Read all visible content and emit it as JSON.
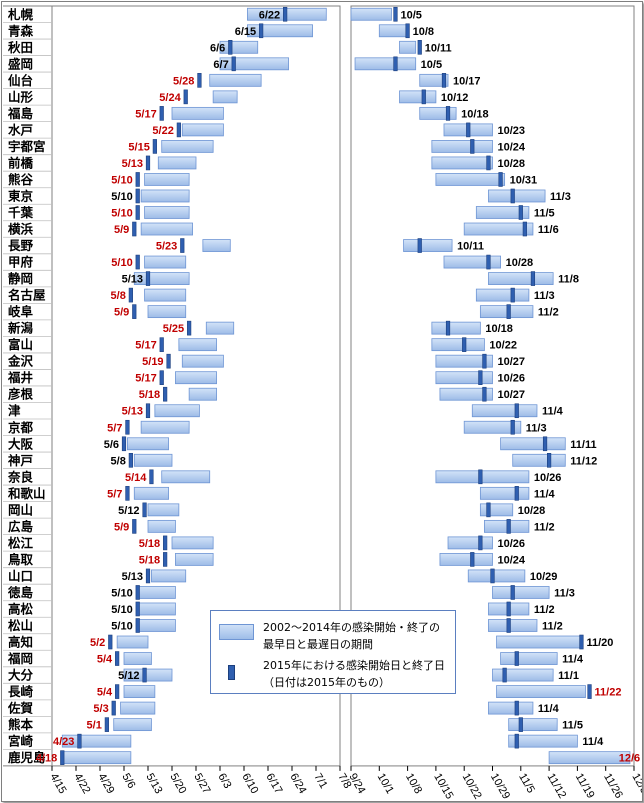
{
  "chart_data": {
    "type": "range-bar",
    "legend": {
      "range_label_line1": "2002～2014年の感染開始・終了の",
      "range_label_line2": "最早日と最遅日の期間",
      "mark_label_line1": "2015年における感染開始日と終了日",
      "mark_label_line2": "（日付は2015年のもの）"
    },
    "colors": {
      "bar": "#a9c4ec",
      "bar_edge": "#6e95d4",
      "mark": "#2f5fb0",
      "red_label": "#c00000",
      "black_label": "#000000"
    },
    "left_axis_ticks": [
      "4/15",
      "4/22",
      "4/29",
      "5/6",
      "5/13",
      "5/20",
      "5/27",
      "6/3",
      "6/10",
      "6/17",
      "6/24",
      "7/1",
      "7/8"
    ],
    "right_axis_ticks": [
      "9/24",
      "10/1",
      "10/8",
      "10/15",
      "10/22",
      "10/29",
      "11/5",
      "11/12",
      "11/19",
      "11/26",
      "12/3"
    ],
    "cities": [
      {
        "name": "札幌",
        "start_range": [
          "6/11",
          "7/4"
        ],
        "start_2015": "6/22",
        "start_red": false,
        "end_range": [
          "9/24",
          "10/4"
        ],
        "end_2015": "10/5",
        "end_red": false
      },
      {
        "name": "青森",
        "start_range": [
          "6/11",
          "6/30"
        ],
        "start_2015": "6/15",
        "start_red": false,
        "end_range": [
          "10/1",
          "10/8"
        ],
        "end_2015": "10/8",
        "end_red": false
      },
      {
        "name": "秋田",
        "start_range": [
          "6/3",
          "6/14"
        ],
        "start_2015": "6/6",
        "start_red": false,
        "end_range": [
          "10/6",
          "10/10"
        ],
        "end_2015": "10/11",
        "end_red": false
      },
      {
        "name": "盛岡",
        "start_range": [
          "6/3",
          "6/23"
        ],
        "start_2015": "6/7",
        "start_red": false,
        "end_range": [
          "9/25",
          "10/10"
        ],
        "end_2015": "10/5",
        "end_red": false
      },
      {
        "name": "仙台",
        "start_range": [
          "5/31",
          "6/15"
        ],
        "start_2015": "5/28",
        "start_red": true,
        "end_range": [
          "10/11",
          "10/18"
        ],
        "end_2015": "10/17",
        "end_red": false
      },
      {
        "name": "山形",
        "start_range": [
          "6/1",
          "6/8"
        ],
        "start_2015": "5/24",
        "start_red": true,
        "end_range": [
          "10/6",
          "10/15"
        ],
        "end_2015": "10/12",
        "end_red": false
      },
      {
        "name": "福島",
        "start_range": [
          "5/20",
          "6/4"
        ],
        "start_2015": "5/17",
        "start_red": true,
        "end_range": [
          "10/11",
          "10/20"
        ],
        "end_2015": "10/18",
        "end_red": false
      },
      {
        "name": "水戸",
        "start_range": [
          "5/23",
          "6/4"
        ],
        "start_2015": "5/22",
        "start_red": true,
        "end_range": [
          "10/17",
          "10/29"
        ],
        "end_2015": "10/23",
        "end_red": false
      },
      {
        "name": "宇都宮",
        "start_range": [
          "5/17",
          "6/1"
        ],
        "start_2015": "5/15",
        "start_red": true,
        "end_range": [
          "10/14",
          "10/29"
        ],
        "end_2015": "10/24",
        "end_red": false
      },
      {
        "name": "前橋",
        "start_range": [
          "5/16",
          "5/27"
        ],
        "start_2015": "5/13",
        "start_red": true,
        "end_range": [
          "10/14",
          "10/29"
        ],
        "end_2015": "10/28",
        "end_red": false
      },
      {
        "name": "熊谷",
        "start_range": [
          "5/12",
          "5/25"
        ],
        "start_2015": "5/10",
        "start_red": true,
        "end_range": [
          "10/15",
          "11/1"
        ],
        "end_2015": "10/31",
        "end_red": false
      },
      {
        "name": "東京",
        "start_range": [
          "5/11",
          "5/25"
        ],
        "start_2015": "5/10",
        "start_red": false,
        "end_range": [
          "10/28",
          "11/11"
        ],
        "end_2015": "11/3",
        "end_red": false
      },
      {
        "name": "千葉",
        "start_range": [
          "5/12",
          "5/25"
        ],
        "start_2015": "5/10",
        "start_red": true,
        "end_range": [
          "10/25",
          "11/7"
        ],
        "end_2015": "11/5",
        "end_red": false
      },
      {
        "name": "横浜",
        "start_range": [
          "5/11",
          "5/26"
        ],
        "start_2015": "5/9",
        "start_red": true,
        "end_range": [
          "10/22",
          "11/8"
        ],
        "end_2015": "11/6",
        "end_red": false
      },
      {
        "name": "長野",
        "start_range": [
          "5/29",
          "6/6"
        ],
        "start_2015": "5/23",
        "start_red": true,
        "end_range": [
          "10/7",
          "10/19"
        ],
        "end_2015": "10/11",
        "end_red": false
      },
      {
        "name": "甲府",
        "start_range": [
          "5/12",
          "5/24"
        ],
        "start_2015": "5/10",
        "start_red": true,
        "end_range": [
          "10/17",
          "10/31"
        ],
        "end_2015": "10/28",
        "end_red": false
      },
      {
        "name": "静岡",
        "start_range": [
          "5/9",
          "5/25"
        ],
        "start_2015": "5/13",
        "start_red": false,
        "end_range": [
          "10/28",
          "11/13"
        ],
        "end_2015": "11/8",
        "end_red": false
      },
      {
        "name": "名古屋",
        "start_range": [
          "5/12",
          "5/24"
        ],
        "start_2015": "5/8",
        "start_red": true,
        "end_range": [
          "10/25",
          "11/7"
        ],
        "end_2015": "11/3",
        "end_red": false
      },
      {
        "name": "岐阜",
        "start_range": [
          "5/13",
          "5/24"
        ],
        "start_2015": "5/9",
        "start_red": true,
        "end_range": [
          "10/26",
          "11/8"
        ],
        "end_2015": "11/2",
        "end_red": false
      },
      {
        "name": "新潟",
        "start_range": [
          "5/30",
          "6/7"
        ],
        "start_2015": "5/25",
        "start_red": true,
        "end_range": [
          "10/14",
          "10/26"
        ],
        "end_2015": "10/18",
        "end_red": false
      },
      {
        "name": "富山",
        "start_range": [
          "5/22",
          "6/2"
        ],
        "start_2015": "5/17",
        "start_red": true,
        "end_range": [
          "10/14",
          "10/27"
        ],
        "end_2015": "10/22",
        "end_red": false
      },
      {
        "name": "金沢",
        "start_range": [
          "5/23",
          "6/4"
        ],
        "start_2015": "5/19",
        "start_red": true,
        "end_range": [
          "10/15",
          "10/29"
        ],
        "end_2015": "10/27",
        "end_red": false
      },
      {
        "name": "福井",
        "start_range": [
          "5/21",
          "6/2"
        ],
        "start_2015": "5/17",
        "start_red": true,
        "end_range": [
          "10/15",
          "10/29"
        ],
        "end_2015": "10/26",
        "end_red": false
      },
      {
        "name": "彦根",
        "start_range": [
          "5/25",
          "6/2"
        ],
        "start_2015": "5/18",
        "start_red": true,
        "end_range": [
          "10/16",
          "10/29"
        ],
        "end_2015": "10/27",
        "end_red": false
      },
      {
        "name": "津",
        "start_range": [
          "5/15",
          "5/28"
        ],
        "start_2015": "5/13",
        "start_red": true,
        "end_range": [
          "10/24",
          "11/9"
        ],
        "end_2015": "11/4",
        "end_red": false
      },
      {
        "name": "京都",
        "start_range": [
          "5/11",
          "5/25"
        ],
        "start_2015": "5/7",
        "start_red": true,
        "end_range": [
          "10/22",
          "11/5"
        ],
        "end_2015": "11/3",
        "end_red": false
      },
      {
        "name": "大阪",
        "start_range": [
          "5/7",
          "5/19"
        ],
        "start_2015": "5/6",
        "start_red": false,
        "end_range": [
          "10/31",
          "11/16"
        ],
        "end_2015": "11/11",
        "end_red": false
      },
      {
        "name": "神戸",
        "start_range": [
          "5/9",
          "5/20"
        ],
        "start_2015": "5/8",
        "start_red": false,
        "end_range": [
          "11/3",
          "11/16"
        ],
        "end_2015": "11/12",
        "end_red": false
      },
      {
        "name": "奈良",
        "start_range": [
          "5/17",
          "5/31"
        ],
        "start_2015": "5/14",
        "start_red": true,
        "end_range": [
          "10/15",
          "11/7"
        ],
        "end_2015": "10/26",
        "end_red": false
      },
      {
        "name": "和歌山",
        "start_range": [
          "5/9",
          "5/19"
        ],
        "start_2015": "5/7",
        "start_red": true,
        "end_range": [
          "10/26",
          "11/7"
        ],
        "end_2015": "11/4",
        "end_red": false
      },
      {
        "name": "岡山",
        "start_range": [
          "5/13",
          "5/22"
        ],
        "start_2015": "5/12",
        "start_red": false,
        "end_range": [
          "10/26",
          "11/3"
        ],
        "end_2015": "10/28",
        "end_red": false
      },
      {
        "name": "広島",
        "start_range": [
          "5/13",
          "5/21"
        ],
        "start_2015": "5/9",
        "start_red": true,
        "end_range": [
          "10/27",
          "11/7"
        ],
        "end_2015": "11/2",
        "end_red": false
      },
      {
        "name": "松江",
        "start_range": [
          "5/20",
          "6/1"
        ],
        "start_2015": "5/18",
        "start_red": true,
        "end_range": [
          "10/18",
          "10/29"
        ],
        "end_2015": "10/26",
        "end_red": false
      },
      {
        "name": "鳥取",
        "start_range": [
          "5/21",
          "6/1"
        ],
        "start_2015": "5/18",
        "start_red": true,
        "end_range": [
          "10/16",
          "10/29"
        ],
        "end_2015": "10/24",
        "end_red": false
      },
      {
        "name": "山口",
        "start_range": [
          "5/14",
          "5/24"
        ],
        "start_2015": "5/13",
        "start_red": false,
        "end_range": [
          "10/23",
          "11/6"
        ],
        "end_2015": "10/29",
        "end_red": false
      },
      {
        "name": "徳島",
        "start_range": [
          "5/10",
          "5/21"
        ],
        "start_2015": "5/10",
        "start_red": false,
        "end_range": [
          "10/29",
          "11/12"
        ],
        "end_2015": "11/3",
        "end_red": false
      },
      {
        "name": "高松",
        "start_range": [
          "5/10",
          "5/21"
        ],
        "start_2015": "5/10",
        "start_red": false,
        "end_range": [
          "10/28",
          "11/7"
        ],
        "end_2015": "11/2",
        "end_red": false
      },
      {
        "name": "松山",
        "start_range": [
          "5/10",
          "5/21"
        ],
        "start_2015": "5/10",
        "start_red": false,
        "end_range": [
          "10/28",
          "11/9"
        ],
        "end_2015": "11/2",
        "end_red": false
      },
      {
        "name": "高知",
        "start_range": [
          "5/4",
          "5/13"
        ],
        "start_2015": "5/2",
        "start_red": true,
        "end_range": [
          "10/30",
          "11/20"
        ],
        "end_2015": "11/20",
        "end_red": false
      },
      {
        "name": "福岡",
        "start_range": [
          "5/6",
          "5/14"
        ],
        "start_2015": "5/4",
        "start_red": true,
        "end_range": [
          "10/31",
          "11/14"
        ],
        "end_2015": "11/4",
        "end_red": false
      },
      {
        "name": "大分",
        "start_range": [
          "5/6",
          "5/20"
        ],
        "start_2015": "5/12",
        "start_red": false,
        "end_range": [
          "10/29",
          "11/13"
        ],
        "end_2015": "11/1",
        "end_red": false
      },
      {
        "name": "長崎",
        "start_range": [
          "5/6",
          "5/15"
        ],
        "start_2015": "5/4",
        "start_red": true,
        "end_range": [
          "10/30",
          "11/21"
        ],
        "end_2015": "11/22",
        "end_red": true
      },
      {
        "name": "佐賀",
        "start_range": [
          "5/5",
          "5/15"
        ],
        "start_2015": "5/3",
        "start_red": true,
        "end_range": [
          "10/28",
          "11/8"
        ],
        "end_2015": "11/4",
        "end_red": false
      },
      {
        "name": "熊本",
        "start_range": [
          "5/3",
          "5/14"
        ],
        "start_2015": "5/1",
        "start_red": true,
        "end_range": [
          "11/2",
          "11/14"
        ],
        "end_2015": "11/5",
        "end_red": false
      },
      {
        "name": "宮崎",
        "start_range": [
          "4/18",
          "5/8"
        ],
        "start_2015": "4/23",
        "start_red": true,
        "end_range": [
          "11/2",
          "11/19"
        ],
        "end_2015": "11/4",
        "end_red": false
      },
      {
        "name": "鹿児島",
        "start_range": [
          "4/18",
          "5/8"
        ],
        "start_2015": "4/18",
        "start_red": true,
        "end_range": [
          "11/12",
          "12/2"
        ],
        "end_2015": "12/6",
        "end_red": true
      }
    ]
  }
}
